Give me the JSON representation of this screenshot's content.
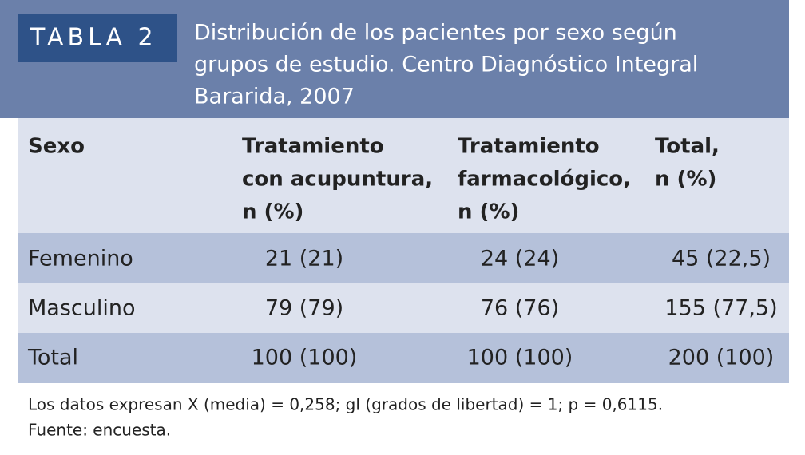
{
  "header": {
    "label": "TABLA 2",
    "title": [
      "Distribución de los pacientes por sexo según",
      "grupos de estudio. Centro Diagnóstico Integral",
      "Bararida, 2007"
    ]
  },
  "table": {
    "columns": [
      [
        "Sexo"
      ],
      [
        "Tratamiento",
        "con acupuntura,",
        "n (%)"
      ],
      [
        "Tratamiento",
        "farmacológico,",
        "n (%)"
      ],
      [
        "Total,",
        "n (%)"
      ]
    ],
    "rows": [
      [
        "Femenino",
        "21 (21)",
        "24 (24)",
        "45 (22,5)"
      ],
      [
        "Masculino",
        "79 (79)",
        "76 (76)",
        "155 (77,5)"
      ],
      [
        "Total",
        "100 (100)",
        "100 (100)",
        "200 (100)"
      ]
    ]
  },
  "notes": [
    "Los datos expresan X (media) = 0,258; gl (grados de libertad) = 1; p = 0,6115.",
    "Fuente: encuesta."
  ]
}
